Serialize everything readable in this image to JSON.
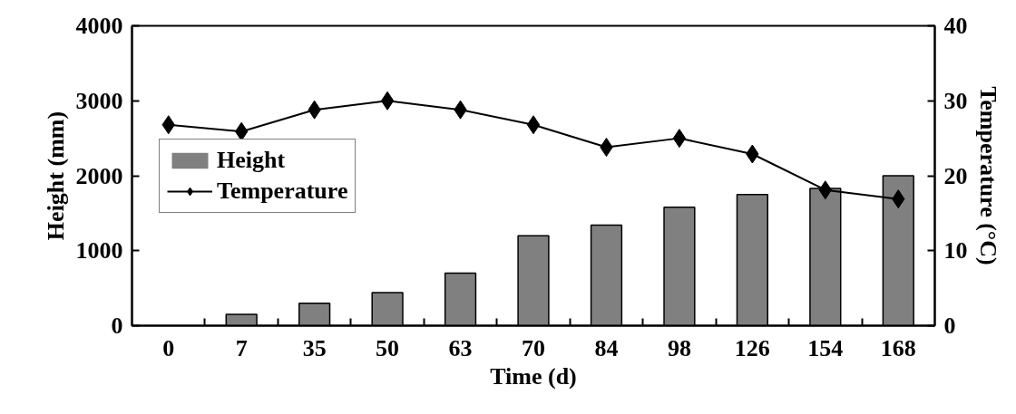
{
  "chart_data": {
    "type": "bar",
    "xlabel": "Time (d)",
    "ylabel": "Height (mm)",
    "y2label": "Temperature (°C)",
    "categories": [
      "0",
      "7",
      "35",
      "50",
      "63",
      "70",
      "84",
      "98",
      "126",
      "154",
      "168"
    ],
    "series": [
      {
        "name": "Height",
        "color": "#808080",
        "values": [
          0,
          150,
          300,
          440,
          700,
          1200,
          1340,
          1580,
          1750,
          1830,
          2000
        ]
      },
      {
        "name": "Temperature",
        "type": "line",
        "axis": "y2",
        "color": "#000000",
        "marker": "diamond",
        "values": [
          26.8,
          25.9,
          28.8,
          30.0,
          28.8,
          26.8,
          23.8,
          25.0,
          22.9,
          18.1,
          16.9
        ]
      }
    ],
    "ylim": [
      0,
      4000
    ],
    "yticks": [
      0,
      1000,
      2000,
      3000,
      4000
    ],
    "y2lim": [
      0,
      40
    ],
    "y2ticks": [
      0,
      10,
      20,
      30,
      40
    ],
    "grid": false,
    "legend": "left"
  }
}
